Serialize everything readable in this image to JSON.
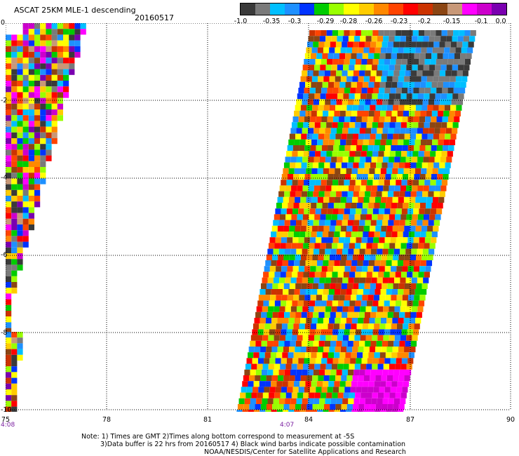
{
  "header": {
    "title": "ASCAT 25KM MLE-1 descending",
    "date": "20160517"
  },
  "colorbar": {
    "labels": [
      "-1.0",
      "-0.35",
      "-0.3",
      "-0.29",
      "-0.28",
      "-0.26",
      "-0.23",
      "-0.2",
      "-0.15",
      "-0.1",
      "0.0"
    ],
    "colors": [
      "#3a3a3a",
      "#7a7a7a",
      "#00bfff",
      "#1e90ff",
      "#0033ff",
      "#00cc00",
      "#99ff00",
      "#ffff00",
      "#ffcc00",
      "#ff8800",
      "#ff4400",
      "#ff0000",
      "#cc3300",
      "#8b4513",
      "#c89878",
      "#ff00ff",
      "#cc00cc",
      "#7a00b0"
    ]
  },
  "axes": {
    "x_ticks": [
      "75",
      "78",
      "81",
      "84",
      "87",
      "90"
    ],
    "y_ticks": [
      "0",
      "-2",
      "-4",
      "-6",
      "-8",
      "-10"
    ],
    "lon_range": [
      75,
      90
    ],
    "lat_range": [
      -10,
      0
    ]
  },
  "times": {
    "left": "4:08",
    "center": "4:07"
  },
  "footer": {
    "note1": "Note: 1) Times are GMT 2)Times along bottom correspond to measurement at -5S",
    "note2": "3)Data buffer is 22 hrs from 20160517 4) Black wind barbs indicate possible contamination",
    "credit": "NOAA/NESDIS/Center for Satellite Applications and Research"
  }
}
